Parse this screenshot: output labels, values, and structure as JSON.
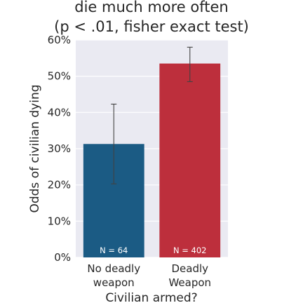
{
  "chart_data": {
    "type": "bar",
    "title_lines": [
      "die much more often",
      "(p < .01, fisher exact test)"
    ],
    "xlabel": "Civilian armed?",
    "ylabel": "Odds of civilian dying",
    "ylim": [
      0,
      60
    ],
    "y_ticks": [
      0,
      10,
      20,
      30,
      40,
      50,
      60
    ],
    "y_tick_format": "percent",
    "grid": true,
    "colors": {
      "background": "#eaeaf2",
      "bar_no_weapon": "#1b5b84",
      "bar_weapon": "#bd2f3c"
    },
    "categories": [
      [
        "No deadly",
        "weapon"
      ],
      [
        "Deadly",
        "Weapon"
      ]
    ],
    "values": [
      31.3,
      53.5
    ],
    "error_low": [
      20.3,
      48.5
    ],
    "error_high": [
      42.3,
      58.0
    ],
    "bar_labels": [
      "N = 64",
      "N = 402"
    ]
  }
}
